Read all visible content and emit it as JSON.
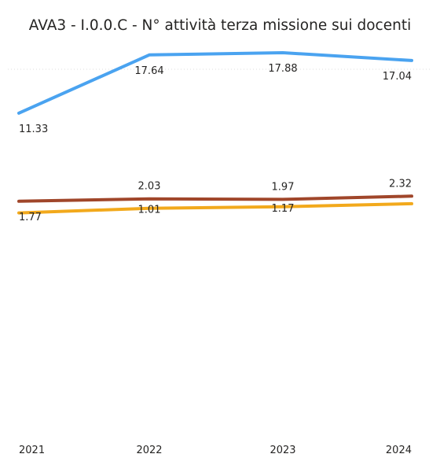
{
  "chart_data": {
    "type": "line",
    "title": "AVA3 - I.0.0.C - N° attività terza missione sui docenti",
    "x": [
      "2021",
      "2022",
      "2023",
      "2024"
    ],
    "series": [
      {
        "values": [
          11.33,
          17.64,
          17.88,
          17.04
        ],
        "color": "#4aa3f0"
      },
      {
        "values": [
          1.77,
          2.03,
          1.97,
          2.32
        ],
        "color": "#a0462a"
      },
      {
        "values": [
          0.5,
          1.01,
          1.17,
          1.5
        ],
        "color": "#f2a91c"
      }
    ],
    "data_labels": [
      [
        "11.33",
        "17.64",
        "17.88",
        "17.04"
      ],
      [
        "1.77",
        "2.03",
        "1.97",
        "2.32"
      ],
      [
        "",
        "1.01",
        "1.17",
        ""
      ]
    ],
    "grid": false,
    "legend": "none"
  }
}
